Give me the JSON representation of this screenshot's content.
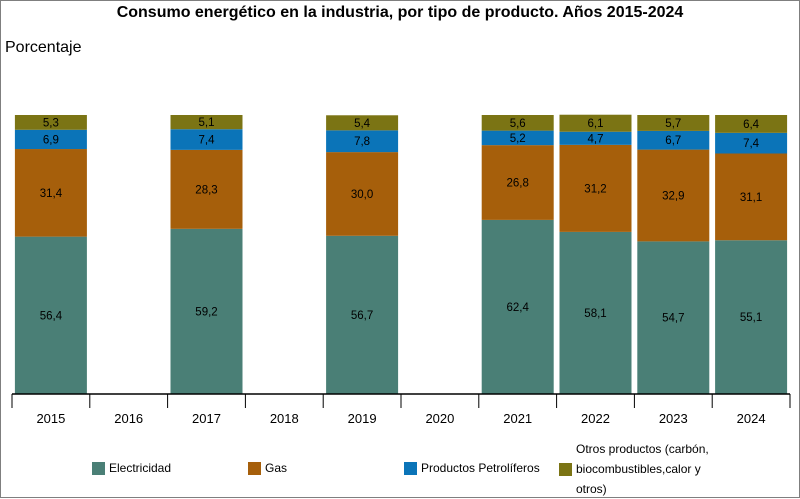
{
  "chart_data": {
    "type": "bar",
    "stacked": true,
    "title": "Consumo energético en la industria, por tipo de producto. Años 2015-2024",
    "ylabel": "Porcentaje",
    "xlabel": "",
    "ylim": [
      0,
      100
    ],
    "grid": false,
    "legend_position": "bottom",
    "categories": [
      "2015",
      "2016",
      "2017",
      "2018",
      "2019",
      "2020",
      "2021",
      "2022",
      "2023",
      "2024"
    ],
    "series": [
      {
        "name": "Electricidad",
        "color": "#4a7f76",
        "values": [
          56.4,
          null,
          59.2,
          null,
          56.7,
          null,
          62.4,
          58.1,
          54.7,
          55.1
        ],
        "labels": [
          "56,4",
          "",
          "59,2",
          "",
          "56,7",
          "",
          "62,4",
          "58,1",
          "54,7",
          "55,1"
        ]
      },
      {
        "name": "Gas",
        "color": "#a65f0b",
        "values": [
          31.4,
          null,
          28.3,
          null,
          30.0,
          null,
          26.8,
          31.2,
          32.9,
          31.1
        ],
        "labels": [
          "31,4",
          "",
          "28,3",
          "",
          "30,0",
          "",
          "26,8",
          "31,2",
          "32,9",
          "31,1"
        ]
      },
      {
        "name": "Productos Petrolíferos",
        "color": "#0b74b8",
        "values": [
          6.9,
          null,
          7.4,
          null,
          7.8,
          null,
          5.2,
          4.7,
          6.7,
          7.4
        ],
        "labels": [
          "6,9",
          "",
          "7,4",
          "",
          "7,8",
          "",
          "5,2",
          "4,7",
          "6,7",
          "7,4"
        ]
      },
      {
        "name": "Otros productos (carbón, biocombustibles,calor y otros)",
        "color": "#7b7414",
        "values": [
          5.3,
          null,
          5.1,
          null,
          5.4,
          null,
          5.6,
          6.1,
          5.7,
          6.4
        ],
        "labels": [
          "5,3",
          "",
          "5,1",
          "",
          "5,4",
          "",
          "5,6",
          "6,1",
          "5,7",
          "6,4"
        ]
      }
    ]
  }
}
